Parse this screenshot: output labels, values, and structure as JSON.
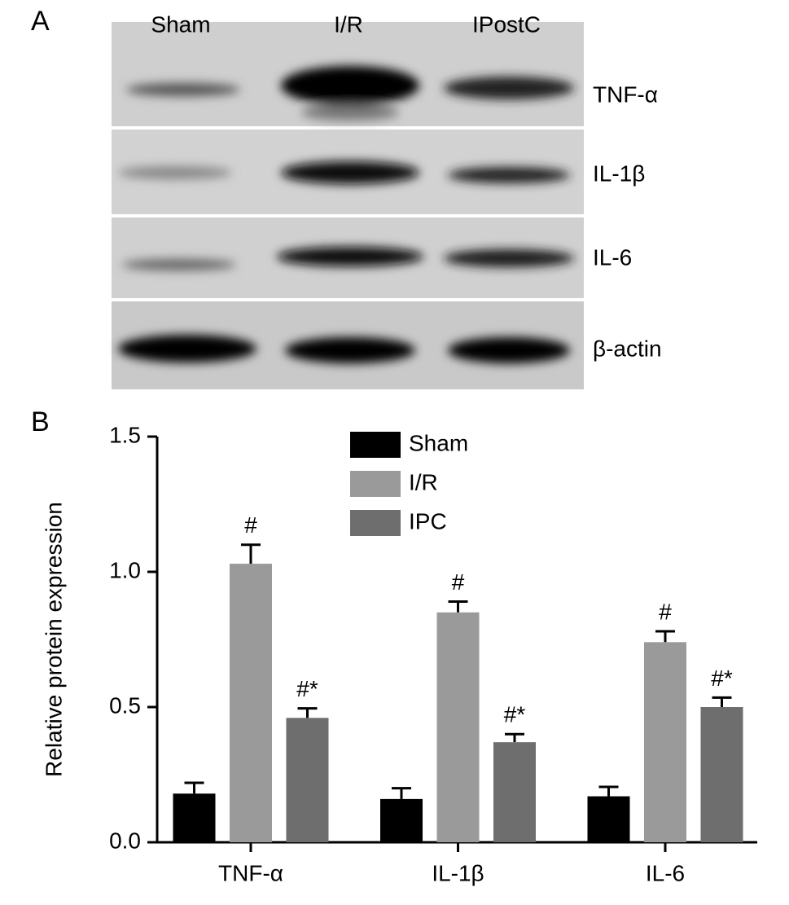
{
  "panel_a": {
    "panel_label": "A",
    "lanes": [
      "Sham",
      "I/R",
      "IPostC"
    ],
    "proteins": [
      "TNF-α",
      "IL-1β",
      "IL-6",
      "β-actin"
    ]
  },
  "chart_data": {
    "type": "bar",
    "panel_label": "B",
    "ylabel": "Relative protein expression",
    "categories": [
      "TNF-α",
      "IL-1β",
      "IL-6"
    ],
    "series": [
      {
        "name": "Sham",
        "color": "#000000",
        "values": [
          0.18,
          0.16,
          0.17
        ],
        "errors": [
          0.04,
          0.04,
          0.035
        ]
      },
      {
        "name": "I/R",
        "color": "#9a9a9a",
        "values": [
          1.03,
          0.85,
          0.74
        ],
        "errors": [
          0.07,
          0.04,
          0.04
        ],
        "annotations": [
          "#",
          "#",
          "#"
        ]
      },
      {
        "name": "IPC",
        "color": "#6e6e6e",
        "values": [
          0.46,
          0.37,
          0.5
        ],
        "errors": [
          0.035,
          0.03,
          0.035
        ],
        "annotations": [
          "#*",
          "#*",
          "#*"
        ]
      }
    ],
    "ylim": [
      0,
      1.5
    ],
    "yticks": [
      {
        "value": 0,
        "label": "0.0"
      },
      {
        "value": 0.5,
        "label": "0.5"
      },
      {
        "value": 1,
        "label": "1.0"
      },
      {
        "value": 1.5,
        "label": "1.5"
      }
    ],
    "legend": "top"
  }
}
